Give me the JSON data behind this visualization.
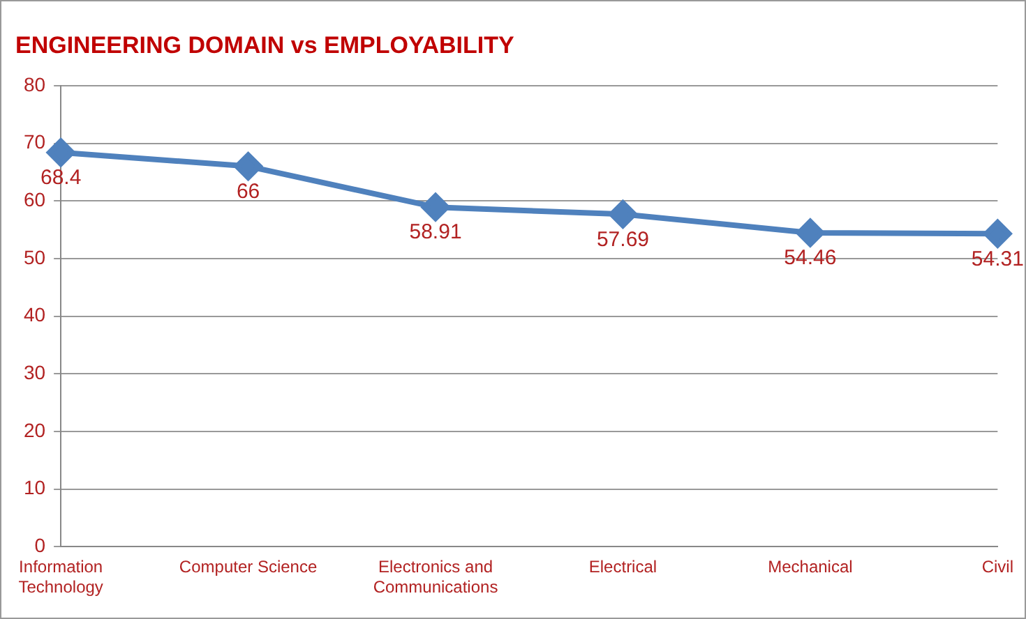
{
  "chart_data": {
    "type": "line",
    "title": "ENGINEERING DOMAIN vs EMPLOYABILITY",
    "categories": [
      "Information Technology",
      "Computer Science",
      "Electronics and Communications",
      "Electrical",
      "Mechanical",
      "Civil"
    ],
    "series": [
      {
        "color": "#4f81bd",
        "values": [
          68.4,
          66,
          58.91,
          57.69,
          54.46,
          54.31
        ]
      }
    ],
    "ylim": [
      0,
      80
    ],
    "yticks": [
      0,
      10,
      20,
      30,
      40,
      50,
      60,
      70,
      80
    ],
    "grid": "y",
    "legend": false,
    "marker": "diamond",
    "line_style": "solid",
    "data_labels": true
  }
}
